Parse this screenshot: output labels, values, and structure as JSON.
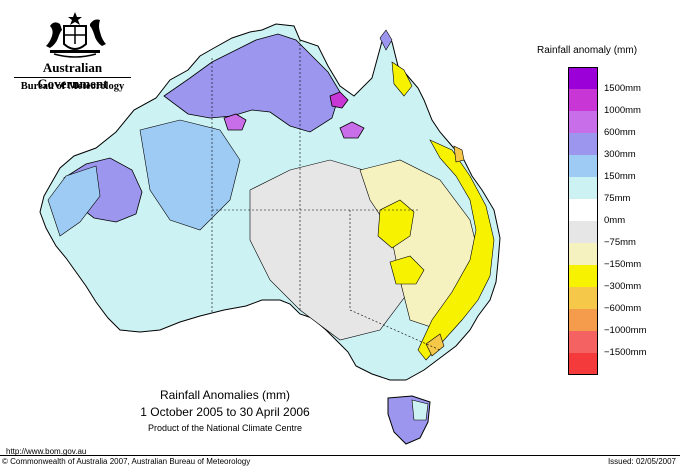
{
  "header": {
    "government": "Australian Government",
    "bureau": "Bureau of Meteorology"
  },
  "legend": {
    "title": "Rainfall anomaly (mm)",
    "items": [
      {
        "label": "1500mm",
        "color": "#9b00d8"
      },
      {
        "label": "1000mm",
        "color": "#c836d6"
      },
      {
        "label": "600mm",
        "color": "#c86ee8"
      },
      {
        "label": "300mm",
        "color": "#9c96ee"
      },
      {
        "label": "150mm",
        "color": "#9ecbf4"
      },
      {
        "label": "75mm",
        "color": "#cdf2f4"
      },
      {
        "label": "0mm",
        "color": "#ffffff"
      },
      {
        "label": "−75mm",
        "color": "#e6e6e6"
      },
      {
        "label": "−150mm",
        "color": "#f6f2c0"
      },
      {
        "label": "−300mm",
        "color": "#f6f200"
      },
      {
        "label": "−600mm",
        "color": "#f6c84a"
      },
      {
        "label": "−1000mm",
        "color": "#f49c4c"
      },
      {
        "label": "−1500mm",
        "color": "#f46262"
      },
      {
        "label": "",
        "color": "#f43a3a"
      }
    ]
  },
  "caption": {
    "title": "Rainfall Anomalies (mm)",
    "period": "1 October 2005 to 30 April 2006",
    "product": "Product of the National Climate Centre"
  },
  "footer": {
    "url": "http://www.bom.gov.au",
    "copyright": "© Commonwealth of Australia 2007, Australian Bureau of Meteorology",
    "issued": "Issued: 02/05/2007"
  }
}
